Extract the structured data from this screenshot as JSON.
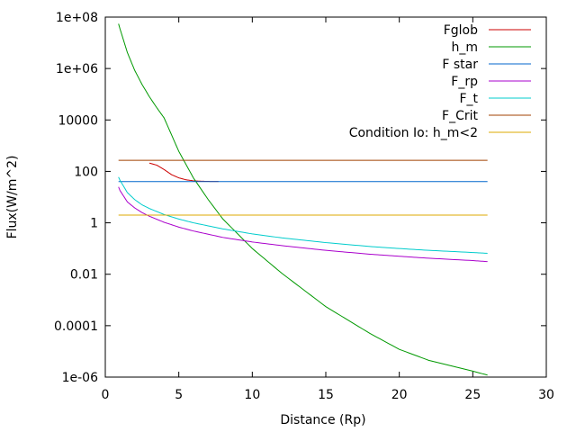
{
  "chart_data": {
    "type": "line",
    "xlabel": "Distance (Rp)",
    "ylabel": "Flux(W/m^2)",
    "xlim": [
      0,
      30
    ],
    "ylim": [
      1e-06,
      100000000.0
    ],
    "y_scale": "log",
    "x_ticks": [
      "0",
      "5",
      "10",
      "15",
      "20",
      "25",
      "30"
    ],
    "y_ticks": [
      "1e-06",
      "0.0001",
      "0.01",
      "1",
      "100",
      "10000",
      "1e+06",
      "1e+08"
    ],
    "legend_position": "top-right",
    "series": [
      {
        "name": "Fglob",
        "color": "#cc0000",
        "x": [
          3.0,
          3.5,
          4.0,
          4.5,
          5.0,
          5.5,
          6.0,
          6.5,
          7.0,
          7.7
        ],
        "y": [
          210,
          175,
          118,
          75,
          56,
          47,
          43,
          41.5,
          40.8,
          40.5
        ]
      },
      {
        "name": "h_m",
        "color": "#009900",
        "x": [
          0.9,
          1.0,
          1.5,
          2.0,
          2.5,
          3.0,
          3.5,
          4.0,
          5.0,
          6.0,
          7.0,
          8.0,
          10.0,
          12.0,
          15.0,
          18.0,
          20.0,
          22.0,
          25.0,
          26.0
        ],
        "y": [
          55000000.0,
          35000000.0,
          4200000.0,
          850000.0,
          240000.0,
          80000.0,
          30000.0,
          12000.0,
          600,
          55,
          8.0,
          1.4,
          0.1,
          0.011,
          0.00055,
          5e-05,
          1.2e-05,
          4.5e-06,
          1.7e-06,
          1.2e-06
        ]
      },
      {
        "name": "F star",
        "color": "#0066cc",
        "x": [
          0.9,
          26.0
        ],
        "y": [
          40,
          40
        ]
      },
      {
        "name": "F_rp",
        "color": "#aa00cc",
        "x": [
          0.9,
          1.0,
          1.5,
          2.0,
          2.5,
          3.0,
          4.0,
          5.0,
          6.0,
          8.0,
          10.0,
          12.0,
          15.0,
          18.0,
          20.0,
          22.0,
          25.0,
          26.0
        ],
        "y": [
          25,
          18,
          6.5,
          3.8,
          2.5,
          1.8,
          1.05,
          0.68,
          0.48,
          0.27,
          0.18,
          0.13,
          0.085,
          0.06,
          0.05,
          0.042,
          0.034,
          0.031
        ]
      },
      {
        "name": "F_t",
        "color": "#00cccc",
        "x": [
          0.9,
          1.0,
          1.5,
          2.0,
          2.5,
          3.0,
          4.0,
          5.0,
          6.0,
          8.0,
          10.0,
          12.0,
          15.0,
          18.0,
          20.0,
          22.0,
          25.0,
          26.0
        ],
        "y": [
          60,
          45,
          15,
          8.0,
          5.0,
          3.6,
          2.1,
          1.4,
          1.0,
          0.58,
          0.37,
          0.26,
          0.17,
          0.12,
          0.1,
          0.085,
          0.07,
          0.065
        ]
      },
      {
        "name": "F_Crit",
        "color": "#a04000",
        "x": [
          0.9,
          26.0
        ],
        "y": [
          270,
          270
        ]
      },
      {
        "name": "Condition Io: h_m<2",
        "color": "#ddaa00",
        "x": [
          0.9,
          26.0
        ],
        "y": [
          2,
          2
        ]
      }
    ]
  }
}
